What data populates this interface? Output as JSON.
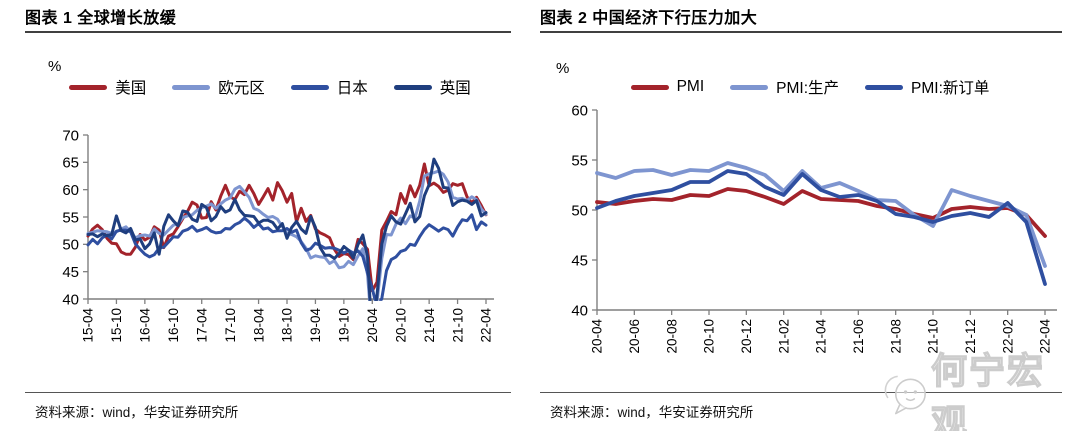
{
  "panels": [
    {
      "title": "图表 1  全球增长放缓",
      "unit": "%",
      "source": "资料来源：wind，华安证券研究所"
    },
    {
      "title": "图表 2  中国经济下行压力加大",
      "unit": "%",
      "source": "资料来源：wind，华安证券研究所"
    }
  ],
  "watermark": {
    "text": "何宁宏观"
  },
  "colors": {
    "axis": "#7f7f7f",
    "tick_label": "#000000",
    "red": "#A3232B",
    "light_blue": "#7E95D0",
    "mid_blue": "#2F4FA0",
    "navy": "#1F3E7E"
  },
  "chart_data": [
    {
      "type": "line",
      "title": "图表 1 全球增长放缓",
      "ylabel": "%",
      "ylim": [
        40,
        70
      ],
      "yticks": [
        40,
        45,
        50,
        55,
        60,
        65,
        70
      ],
      "grid": false,
      "legend_position": "top",
      "x_unit": "year-month, monthly from 15-04 to 22-04",
      "xticklabels": [
        "15-04",
        "15-10",
        "16-04",
        "16-10",
        "17-04",
        "17-10",
        "18-04",
        "18-10",
        "19-04",
        "19-10",
        "20-04",
        "20-10",
        "21-04",
        "21-10",
        "22-04"
      ],
      "xtick_every": 6,
      "clip_below_ymin": true,
      "series": [
        {
          "name": "美国",
          "color": "#A3232B",
          "values": [
            51.5,
            52.8,
            53.5,
            52.7,
            51.1,
            50.2,
            50.1,
            48.6,
            48.2,
            48.2,
            49.5,
            51.8,
            50.8,
            51.3,
            53.2,
            52.6,
            49.4,
            51.5,
            51.9,
            53.2,
            54.7,
            56.0,
            57.7,
            57.2,
            54.8,
            54.9,
            57.8,
            56.3,
            58.8,
            60.8,
            58.7,
            58.2,
            59.7,
            59.1,
            60.8,
            59.3,
            57.3,
            58.7,
            60.2,
            58.1,
            61.3,
            59.8,
            57.7,
            59.3,
            54.1,
            56.6,
            54.2,
            55.3,
            52.8,
            52.1,
            51.7,
            51.2,
            49.1,
            47.8,
            48.3,
            48.1,
            47.2,
            50.9,
            50.1,
            49.1,
            41.5,
            43.1,
            52.6,
            54.2,
            56.0,
            55.4,
            59.3,
            57.5,
            60.7,
            58.7,
            60.8,
            64.7,
            60.7,
            61.2,
            60.6,
            59.5,
            59.9,
            61.1,
            60.8,
            61.1,
            58.7,
            57.6,
            58.6,
            57.1,
            55.4
          ]
        },
        {
          "name": "欧元区",
          "color": "#7E95D0",
          "values": [
            52.0,
            52.2,
            52.5,
            52.4,
            52.3,
            52.0,
            52.3,
            52.8,
            53.2,
            52.3,
            51.2,
            51.6,
            51.7,
            51.5,
            52.8,
            52.0,
            51.7,
            52.6,
            53.5,
            53.7,
            54.9,
            55.2,
            55.4,
            56.2,
            56.7,
            57.0,
            57.4,
            56.6,
            57.4,
            58.1,
            58.5,
            60.1,
            60.6,
            59.6,
            58.6,
            56.6,
            56.2,
            55.5,
            54.9,
            55.1,
            54.6,
            53.2,
            52.0,
            51.8,
            51.4,
            50.5,
            49.3,
            47.5,
            47.9,
            47.7,
            47.6,
            46.5,
            47.0,
            45.7,
            45.9,
            46.9,
            46.3,
            47.9,
            49.2,
            44.5,
            33.4,
            39.4,
            47.4,
            51.8,
            51.7,
            53.7,
            54.8,
            53.8,
            55.2,
            54.8,
            57.9,
            62.5,
            62.9,
            63.1,
            63.4,
            62.8,
            61.4,
            58.6,
            58.3,
            58.4,
            58.0,
            58.7,
            58.2,
            56.5,
            55.5
          ]
        },
        {
          "name": "日本",
          "color": "#2F4FA0",
          "values": [
            49.9,
            50.9,
            50.1,
            51.2,
            51.7,
            51.0,
            52.4,
            52.6,
            52.6,
            52.3,
            50.1,
            49.1,
            48.2,
            47.7,
            48.1,
            49.3,
            49.5,
            50.4,
            51.4,
            51.3,
            52.4,
            52.7,
            53.3,
            52.4,
            52.7,
            53.1,
            52.4,
            52.1,
            52.2,
            52.9,
            52.8,
            53.6,
            54.0,
            54.8,
            54.1,
            53.1,
            53.8,
            52.8,
            53.0,
            52.3,
            52.5,
            52.5,
            52.9,
            52.2,
            52.6,
            50.3,
            48.9,
            49.2,
            50.2,
            49.8,
            49.3,
            49.4,
            49.3,
            48.9,
            48.4,
            48.9,
            48.4,
            48.8,
            47.8,
            44.8,
            41.9,
            38.4,
            40.1,
            45.2,
            47.2,
            47.7,
            48.7,
            49.0,
            50.0,
            49.8,
            51.4,
            52.7,
            53.6,
            53.0,
            52.4,
            53.0,
            52.7,
            51.5,
            53.2,
            54.5,
            54.3,
            55.4,
            52.7,
            54.1,
            53.5
          ]
        },
        {
          "name": "英国",
          "color": "#1F3E7E",
          "values": [
            51.8,
            51.9,
            51.4,
            51.9,
            51.6,
            51.8,
            55.2,
            52.5,
            52.1,
            52.9,
            50.8,
            51.0,
            49.2,
            50.1,
            52.1,
            48.2,
            53.3,
            55.4,
            54.3,
            53.4,
            56.1,
            55.9,
            54.6,
            54.2,
            57.3,
            56.7,
            54.3,
            55.1,
            56.9,
            55.9,
            56.3,
            58.2,
            56.3,
            55.3,
            55.2,
            55.1,
            53.9,
            54.4,
            54.4,
            54.0,
            52.8,
            53.8,
            51.1,
            53.1,
            54.2,
            52.8,
            52.0,
            55.1,
            53.1,
            49.4,
            48.0,
            48.0,
            47.4,
            48.3,
            49.6,
            48.9,
            47.5,
            50.0,
            51.7,
            47.8,
            32.6,
            40.7,
            50.1,
            53.3,
            55.2,
            54.1,
            53.7,
            55.6,
            57.5,
            54.1,
            55.1,
            58.9,
            60.9,
            65.6,
            63.9,
            60.4,
            60.3,
            57.1,
            57.8,
            58.1,
            57.9,
            57.3,
            58.0,
            55.2,
            55.8
          ]
        }
      ]
    },
    {
      "type": "line",
      "title": "图表 2 中国经济下行压力加大",
      "ylabel": "%",
      "ylim": [
        40,
        60
      ],
      "yticks": [
        40,
        45,
        50,
        55,
        60
      ],
      "grid": false,
      "legend_position": "top",
      "x_unit": "year-month, monthly from 20-04 to 22-04",
      "xticklabels": [
        "20-04",
        "20-06",
        "20-08",
        "20-10",
        "20-12",
        "21-02",
        "21-04",
        "21-06",
        "21-08",
        "21-10",
        "21-12",
        "22-02",
        "22-04"
      ],
      "xtick_every": 2,
      "clip_below_ymin": true,
      "series": [
        {
          "name": "PMI",
          "color": "#A3232B",
          "values": [
            50.8,
            50.6,
            50.9,
            51.1,
            51.0,
            51.5,
            51.4,
            52.1,
            51.9,
            51.3,
            50.6,
            51.9,
            51.1,
            51.0,
            50.9,
            50.4,
            50.1,
            49.6,
            49.2,
            50.1,
            50.3,
            50.1,
            50.2,
            49.5,
            47.4
          ]
        },
        {
          "name": "PMI:生产",
          "color": "#7E95D0",
          "values": [
            53.7,
            53.2,
            53.9,
            54.0,
            53.5,
            54.0,
            53.9,
            54.7,
            54.2,
            53.5,
            51.9,
            53.9,
            52.2,
            52.7,
            51.9,
            51.0,
            50.9,
            49.5,
            48.4,
            52.0,
            51.4,
            50.9,
            50.4,
            49.5,
            44.4
          ]
        },
        {
          "name": "PMI:新订单",
          "color": "#2F4FA0",
          "values": [
            50.2,
            50.9,
            51.4,
            51.7,
            52.0,
            52.8,
            52.8,
            53.9,
            53.6,
            52.3,
            51.5,
            53.6,
            52.0,
            51.3,
            51.5,
            50.9,
            49.6,
            49.3,
            48.8,
            49.4,
            49.7,
            49.3,
            50.7,
            48.8,
            42.6
          ]
        }
      ]
    }
  ]
}
